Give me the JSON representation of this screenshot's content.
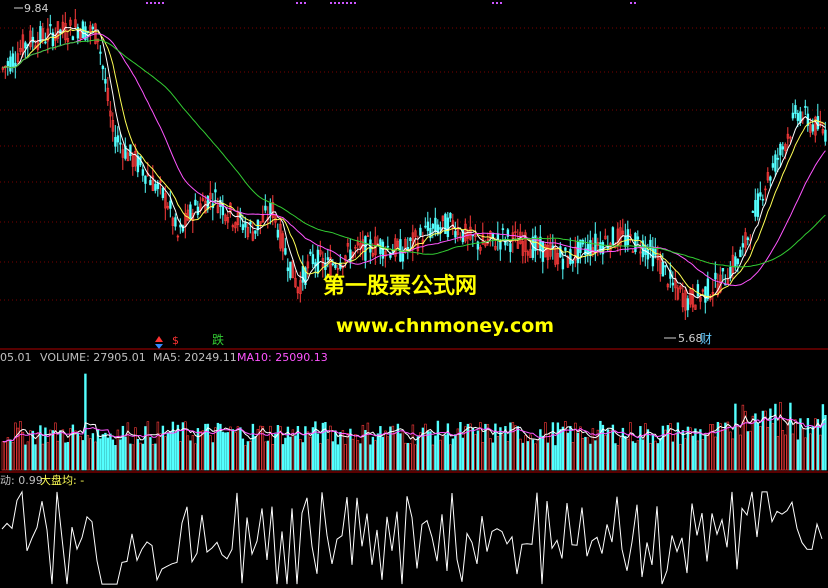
{
  "chart_data": [
    {
      "type": "candlestick",
      "panel": "price",
      "title": "",
      "annotations": {
        "high_label": "9.84",
        "low_label": "5.68",
        "low_marker_text": "财",
        "signal_text_1": "$",
        "signal_text_2": "跌"
      },
      "watermark": {
        "line1": "第一股票公式网",
        "line2": "www.chnmoney.com"
      },
      "price_range": [
        5.3,
        10.0
      ],
      "candles_ohlc_sample": [
        [
          9.1,
          9.5,
          9.0,
          9.4
        ],
        [
          9.4,
          9.84,
          9.3,
          9.6
        ],
        [
          9.6,
          9.7,
          8.0,
          8.2
        ],
        [
          8.2,
          8.4,
          7.8,
          7.9
        ],
        [
          7.9,
          8.1,
          7.3,
          7.5
        ],
        [
          7.5,
          7.6,
          6.6,
          6.7
        ],
        [
          6.7,
          7.3,
          6.6,
          7.2
        ],
        [
          7.2,
          7.5,
          6.9,
          7.0
        ],
        [
          7.0,
          7.2,
          6.8,
          7.1
        ],
        [
          7.1,
          7.3,
          6.9,
          7.0
        ],
        [
          7.0,
          7.1,
          6.6,
          6.7
        ],
        [
          6.7,
          6.9,
          6.5,
          6.8
        ],
        [
          6.8,
          7.1,
          6.7,
          7.0
        ],
        [
          7.0,
          7.1,
          6.2,
          6.3
        ],
        [
          6.3,
          6.5,
          5.68,
          5.9
        ],
        [
          5.9,
          6.4,
          5.8,
          6.3
        ],
        [
          6.3,
          7.2,
          6.2,
          7.1
        ],
        [
          7.1,
          8.1,
          7.0,
          8.0
        ],
        [
          8.0,
          8.7,
          7.6,
          8.3
        ]
      ],
      "ma_lines": [
        "ma5",
        "ma10",
        "ma30",
        "ma60"
      ],
      "colors": {
        "up": "#ff3b3b",
        "down": "#54ffff",
        "ma5": "#ffffff",
        "ma10": "#ffff55",
        "ma30": "#ff55ff",
        "ma60": "#33cc33",
        "grid": "#7a0000"
      }
    },
    {
      "type": "bar",
      "panel": "volume",
      "labels": {
        "lead": "05.01",
        "volume": "VOLUME: 27905.01",
        "ma5": "MA5: 20249.11",
        "ma10": "MA10: 25090.13"
      },
      "series": [
        {
          "name": "VOLUME",
          "value": 27905.01
        },
        {
          "name": "MA5",
          "value": 20249.11
        },
        {
          "name": "MA10",
          "value": 25090.13
        }
      ]
    },
    {
      "type": "line",
      "panel": "index",
      "labels": {
        "lead": "动: 0.99",
        "dapan": "大盘均: -"
      }
    }
  ]
}
